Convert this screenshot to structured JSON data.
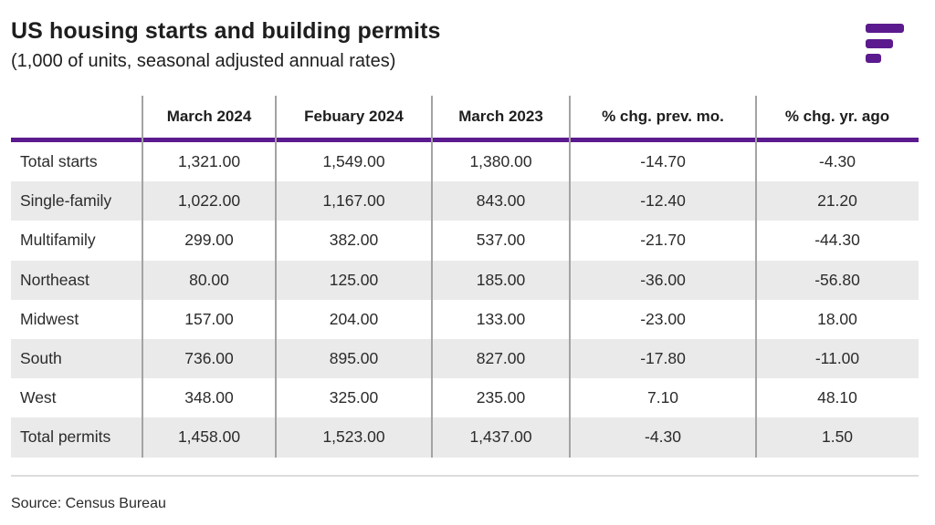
{
  "title": "US housing starts and building permits",
  "subtitle": "(1,000 of units, seasonal adjusted annual rates)",
  "source": "Source: Census Bureau",
  "colors": {
    "accent": "#5b1a8e",
    "row_shade": "#eaeaea",
    "divider": "#a3a3a3"
  },
  "logo": {
    "icon": "brand-bars-icon"
  },
  "chart_data": {
    "type": "table",
    "columns": [
      "",
      "March 2024",
      "Febuary 2024",
      "March 2023",
      "% chg. prev. mo.",
      "% chg. yr. ago"
    ],
    "rows": [
      {
        "label": "Total starts",
        "values": [
          "1,321.00",
          "1,549.00",
          "1,380.00",
          "-14.70",
          "-4.30"
        ]
      },
      {
        "label": "Single-family",
        "values": [
          "1,022.00",
          "1,167.00",
          "843.00",
          "-12.40",
          "21.20"
        ]
      },
      {
        "label": "Multifamily",
        "values": [
          "299.00",
          "382.00",
          "537.00",
          "-21.70",
          "-44.30"
        ]
      },
      {
        "label": "Northeast",
        "values": [
          "80.00",
          "125.00",
          "185.00",
          "-36.00",
          "-56.80"
        ]
      },
      {
        "label": "Midwest",
        "values": [
          "157.00",
          "204.00",
          "133.00",
          "-23.00",
          "18.00"
        ]
      },
      {
        "label": "South",
        "values": [
          "736.00",
          "895.00",
          "827.00",
          "-17.80",
          "-11.00"
        ]
      },
      {
        "label": "West",
        "values": [
          "348.00",
          "325.00",
          "235.00",
          "7.10",
          "48.10"
        ]
      },
      {
        "label": "Total permits",
        "values": [
          "1,458.00",
          "1,523.00",
          "1,437.00",
          "-4.30",
          "1.50"
        ]
      }
    ]
  }
}
